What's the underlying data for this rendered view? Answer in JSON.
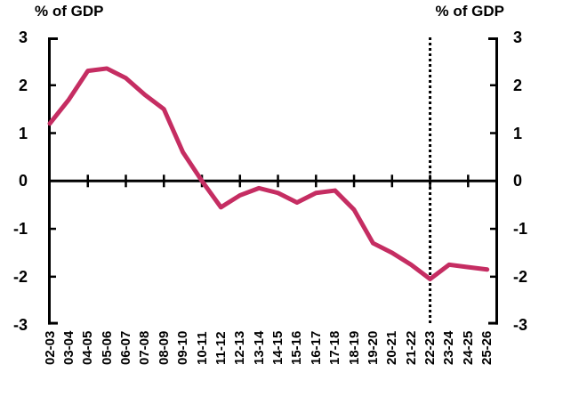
{
  "chart_data": {
    "type": "line",
    "title_left": "% of GDP",
    "title_right": "% of GDP",
    "categories": [
      "02-03",
      "03-04",
      "04-05",
      "05-06",
      "06-07",
      "07-08",
      "08-09",
      "09-10",
      "10-11",
      "11-12",
      "12-13",
      "13-14",
      "14-15",
      "15-16",
      "16-17",
      "17-18",
      "18-19",
      "19-20",
      "20-21",
      "21-22",
      "22-23",
      "23-24",
      "24-25",
      "25-26"
    ],
    "values": [
      1.2,
      1.7,
      2.3,
      2.35,
      2.15,
      1.8,
      1.5,
      0.6,
      0.0,
      -0.55,
      -0.3,
      -0.15,
      -0.25,
      -0.45,
      -0.25,
      -0.2,
      -0.6,
      -1.3,
      -1.5,
      -1.75,
      -2.05,
      -1.75,
      -1.8,
      -1.85
    ],
    "ylim": [
      -3,
      3
    ],
    "yticks": [
      3,
      2,
      1,
      0,
      -1,
      -2,
      -3
    ],
    "ytick_labels": [
      "3",
      "2",
      "1",
      "0",
      "-1",
      "-2",
      "-3"
    ],
    "annotation_line": {
      "category": "22-23",
      "style": "dotted",
      "color": "#000000"
    },
    "line_color": "#c52d62",
    "axis_color": "#000000",
    "grid": false,
    "legend": "none"
  }
}
